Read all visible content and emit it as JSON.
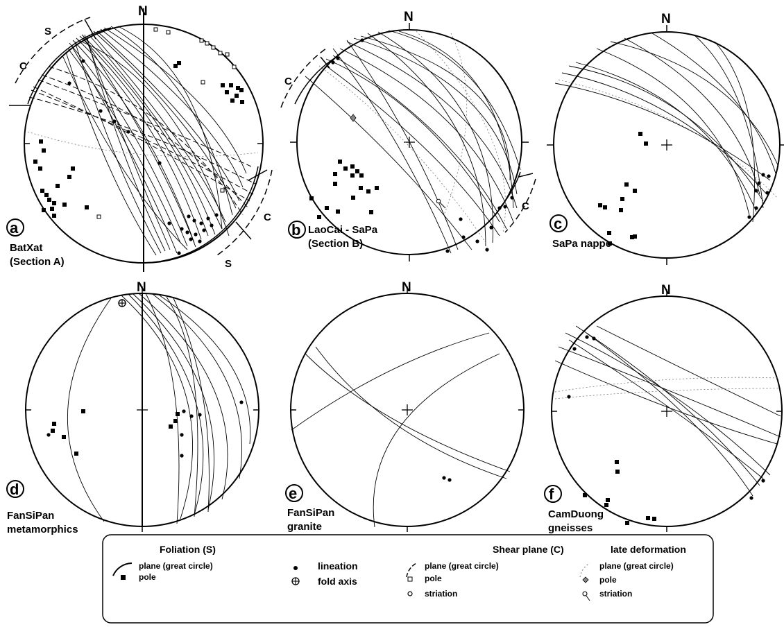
{
  "panels": [
    {
      "id": "a",
      "north": "N",
      "name_line1": "BatXat",
      "name_line2": "(Section A)",
      "shear_label_1": "S",
      "shear_label_2": "C",
      "shear_label_3": "C",
      "shear_label_4": "S"
    },
    {
      "id": "b",
      "north": "N",
      "name_line1": "LaoCai - SaPa",
      "name_line2": "(Section B)",
      "shear_label_1": "C",
      "shear_label_2": "C"
    },
    {
      "id": "c",
      "north": "N",
      "name_line1": "SaPa nappe",
      "name_line2": ""
    },
    {
      "id": "d",
      "north": "N",
      "name_line1": "FanSiPan",
      "name_line2": "metamorphics"
    },
    {
      "id": "e",
      "north": "N",
      "name_line1": "FanSiPan",
      "name_line2": "granite"
    },
    {
      "id": "f",
      "north": "N",
      "name_line1": "CamDuong",
      "name_line2": "gneisses"
    }
  ],
  "legend": {
    "foliation_title": "Foliation  (S)",
    "foliation_plane": "plane  (great circle)",
    "foliation_pole": "pole",
    "lineation": "lineation",
    "fold_axis": "fold axis",
    "shear_title": "Shear plane  (C)",
    "shear_plane": "plane  (great circle)",
    "shear_pole": "pole",
    "shear_striation": "striation",
    "late_title": "late   deformation",
    "late_plane": "plane  (great circle)",
    "late_pole": "pole",
    "late_striation": "striation"
  }
}
